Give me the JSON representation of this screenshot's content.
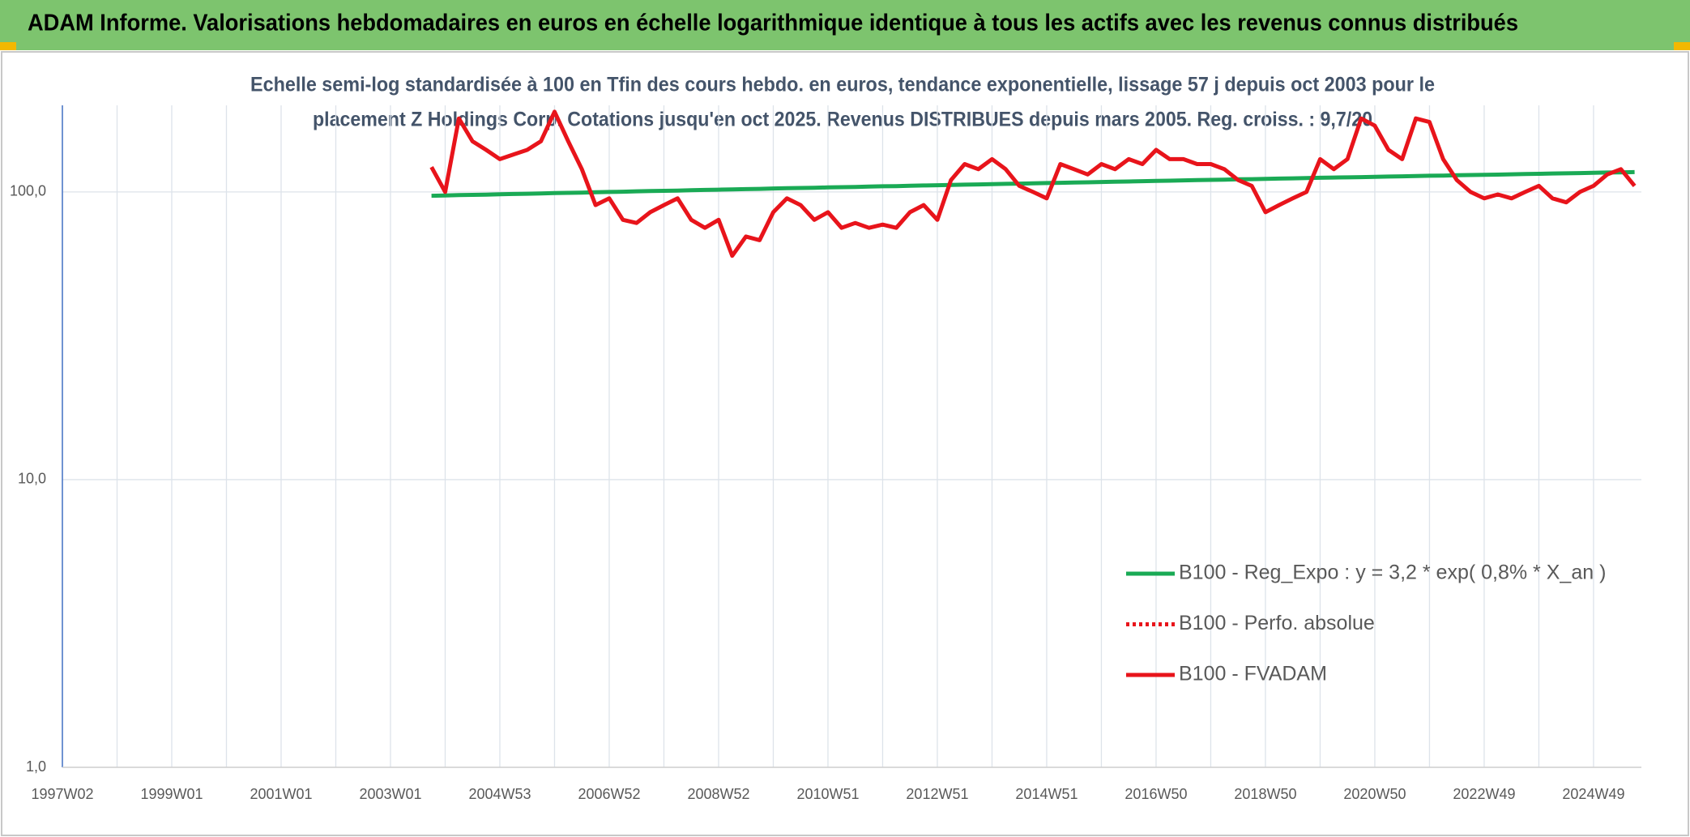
{
  "header": {
    "title": "ADAM Informe. Valorisations hebdomadaires en euros en échelle logarithmique identique à tous les actifs avec les revenus connus distribués"
  },
  "chart_data": {
    "type": "line",
    "subtitle": [
      "Echelle semi-log standardisée à 100 en Tfin des cours hebdo. en euros, tendance exponentielle, lissage 57 j depuis oct 2003 pour le",
      "placement Z Holdings Corp. Cotations jusqu'en oct 2025. Revenus DISTRIBUES depuis mars 2005. Reg. croiss. : 9,7/20"
    ],
    "log_scale": true,
    "grid": true,
    "ylim": [
      1,
      200
    ],
    "yticks": [
      {
        "value": 1,
        "label": "1,0"
      },
      {
        "value": 10,
        "label": "10,0"
      },
      {
        "value": 100,
        "label": "100,0"
      }
    ],
    "categories": [
      "1997W02",
      null,
      null,
      null,
      null,
      null,
      null,
      null,
      "1999W01",
      null,
      null,
      null,
      null,
      null,
      null,
      null,
      "2001W01",
      null,
      null,
      null,
      null,
      null,
      null,
      null,
      "2003W01",
      null,
      null,
      null,
      null,
      null,
      null,
      null,
      "2004W53",
      null,
      null,
      null,
      null,
      null,
      null,
      null,
      "2006W52",
      null,
      null,
      null,
      null,
      null,
      null,
      null,
      "2008W52",
      null,
      null,
      null,
      null,
      null,
      null,
      null,
      "2010W51",
      null,
      null,
      null,
      null,
      null,
      null,
      null,
      "2012W51",
      null,
      null,
      null,
      null,
      null,
      null,
      null,
      "2014W51",
      null,
      null,
      null,
      null,
      null,
      null,
      null,
      "2016W50",
      null,
      null,
      null,
      null,
      null,
      null,
      null,
      "2018W50",
      null,
      null,
      null,
      null,
      null,
      null,
      null,
      "2020W50",
      null,
      null,
      null,
      null,
      null,
      null,
      null,
      "2022W49",
      null,
      null,
      null,
      null,
      null,
      null,
      null,
      "2024W49",
      null,
      null,
      null
    ],
    "series": [
      {
        "name": "B100 - Reg_Expo : y = 3,2 * exp( 0,8% *  X_an )",
        "color": "#1aaa55",
        "style": "solid",
        "values": [
          null,
          null,
          null,
          null,
          null,
          null,
          null,
          null,
          null,
          null,
          null,
          null,
          null,
          null,
          null,
          null,
          null,
          null,
          null,
          null,
          null,
          null,
          null,
          null,
          null,
          null,
          null,
          97.0,
          97.2,
          97.5,
          97.7,
          97.9,
          98.2,
          98.4,
          98.6,
          98.8,
          99.1,
          99.3,
          99.5,
          99.8,
          100.0,
          100.2,
          100.5,
          100.7,
          100.9,
          101.1,
          101.4,
          101.6,
          101.8,
          102.1,
          102.3,
          102.5,
          102.8,
          103.0,
          103.2,
          103.4,
          103.7,
          103.9,
          104.1,
          104.4,
          104.6,
          104.8,
          105.1,
          105.3,
          105.5,
          105.7,
          106.0,
          106.2,
          106.4,
          106.7,
          106.9,
          107.1,
          107.4,
          107.6,
          107.8,
          108.0,
          108.3,
          108.5,
          108.7,
          109.0,
          109.2,
          109.4,
          109.7,
          109.9,
          110.1,
          110.3,
          110.6,
          110.8,
          111.0,
          111.3,
          111.5,
          111.7,
          112.0,
          112.2,
          112.4,
          112.6,
          112.9,
          113.1,
          113.3,
          113.6,
          113.8,
          114.0,
          114.3,
          114.5,
          114.7,
          114.9,
          115.2,
          115.4,
          115.6,
          115.9,
          116.1,
          116.3,
          116.6,
          116.8,
          117.0,
          117.2
        ]
      },
      {
        "name": "B100 - Perfo. absolue",
        "color": "#e8141b",
        "style": "dotted",
        "values": [
          null,
          null,
          null,
          null,
          null,
          null,
          null,
          null,
          null,
          null,
          null,
          null,
          null,
          null,
          null,
          null,
          null,
          null,
          null,
          null,
          null,
          null,
          null,
          null,
          null,
          null,
          null,
          null,
          null,
          null,
          null,
          null,
          null,
          null,
          null,
          null,
          null,
          null,
          null,
          null,
          null,
          null,
          null,
          null,
          null,
          null,
          null,
          null,
          null,
          null,
          null,
          null,
          null,
          null,
          null,
          null,
          null,
          null,
          null,
          null,
          null,
          null,
          null,
          null,
          null,
          null,
          null,
          null,
          null,
          null,
          null,
          null,
          null,
          null,
          null,
          null,
          null,
          null,
          null,
          null,
          null,
          null,
          null,
          null,
          null,
          null,
          null,
          null,
          null,
          null,
          null,
          null,
          null,
          null,
          null,
          null,
          null,
          null,
          null,
          null,
          null,
          null,
          null,
          null,
          null,
          null,
          null,
          null,
          null,
          null,
          null,
          null,
          null,
          null,
          null,
          null
        ]
      },
      {
        "name": "B100 - FVADAM",
        "color": "#e8141b",
        "style": "solid",
        "values": [
          null,
          null,
          null,
          null,
          null,
          null,
          null,
          null,
          null,
          null,
          null,
          null,
          null,
          null,
          null,
          null,
          null,
          null,
          null,
          null,
          null,
          null,
          null,
          null,
          null,
          null,
          null,
          122,
          100,
          180,
          150,
          140,
          130,
          135,
          140,
          150,
          190,
          150,
          120,
          90,
          95,
          80,
          78,
          85,
          90,
          95,
          80,
          75,
          80,
          60,
          70,
          68,
          85,
          95,
          90,
          80,
          85,
          75,
          78,
          75,
          77,
          75,
          85,
          90,
          80,
          110,
          125,
          120,
          130,
          120,
          105,
          100,
          95,
          125,
          120,
          115,
          125,
          120,
          130,
          125,
          140,
          130,
          130,
          125,
          125,
          120,
          110,
          105,
          85,
          90,
          95,
          100,
          130,
          120,
          130,
          180,
          170,
          140,
          130,
          180,
          175,
          130,
          110,
          100,
          95,
          98,
          95,
          100,
          105,
          95,
          92,
          100,
          105,
          115,
          120,
          105
        ]
      }
    ]
  }
}
